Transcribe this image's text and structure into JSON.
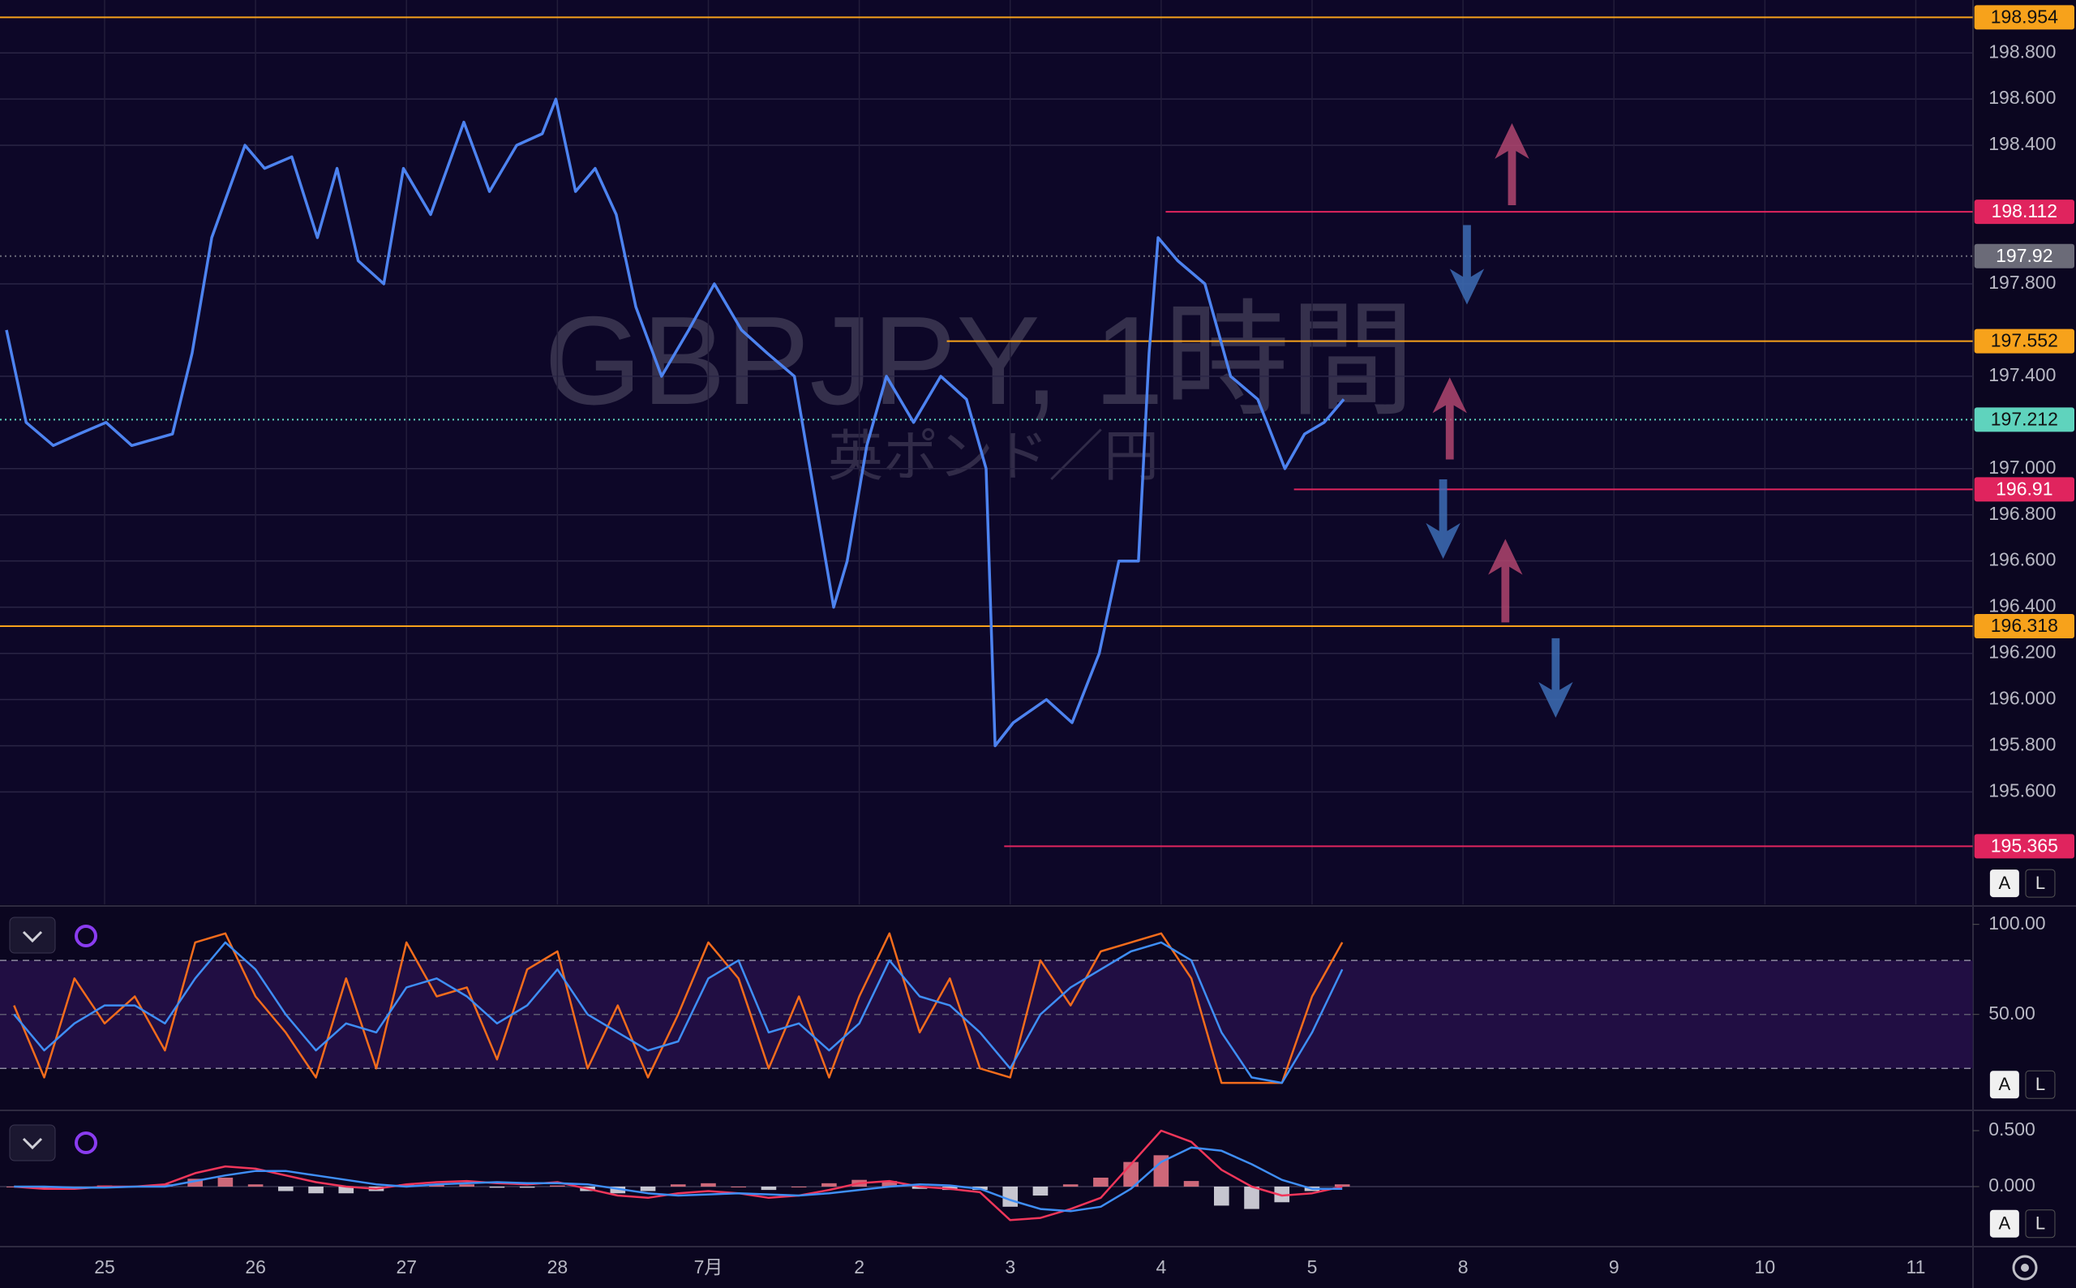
{
  "ui": {
    "auto": "A",
    "log": "L"
  },
  "chart_data": [
    {
      "type": "line",
      "title": "GBPJPY, 1時間",
      "subtitle": "英ポンド／円",
      "x": [
        -0.65,
        -0.52,
        -0.34,
        -0.17,
        0.01,
        0.18,
        0.45,
        0.58,
        0.71,
        0.93,
        1.06,
        1.24,
        1.41,
        1.54,
        1.68,
        1.85,
        1.98,
        2.16,
        2.38,
        2.55,
        2.73,
        2.9,
        2.99,
        3.12,
        3.25,
        3.39,
        3.52,
        3.69,
        3.87,
        4.04,
        4.22,
        4.39,
        4.57,
        4.7,
        4.83,
        4.92,
        5.05,
        5.18,
        5.36,
        5.54,
        5.71,
        5.84,
        5.9,
        6.02,
        6.24,
        6.41,
        6.59,
        6.72,
        6.85,
        6.92,
        6.98,
        7.11,
        7.29,
        7.46,
        7.64,
        7.82,
        7.95,
        8.08,
        8.21
      ],
      "series": [
        {
          "color": "#4d83f0",
          "values": [
            197.6,
            197.2,
            197.1,
            197.15,
            197.2,
            197.1,
            197.15,
            197.5,
            198.0,
            198.4,
            198.3,
            198.35,
            198.0,
            198.3,
            197.9,
            197.8,
            198.3,
            198.1,
            198.5,
            198.2,
            198.4,
            198.45,
            198.6,
            198.2,
            198.3,
            198.1,
            197.7,
            197.4,
            197.6,
            197.8,
            197.6,
            197.5,
            197.4,
            196.9,
            196.4,
            196.6,
            197.1,
            197.4,
            197.2,
            197.4,
            197.3,
            197.0,
            195.8,
            195.9,
            196.0,
            195.9,
            196.2,
            196.6,
            196.6,
            197.5,
            198.0,
            197.9,
            197.8,
            197.4,
            197.3,
            197.0,
            197.15,
            197.2,
            197.3
          ]
        }
      ],
      "xlim": [
        -0.693,
        12.377
      ],
      "xticks": [
        {
          "value": 0,
          "label": "25"
        },
        {
          "value": 1,
          "label": "26"
        },
        {
          "value": 2,
          "label": "27"
        },
        {
          "value": 3,
          "label": "28"
        },
        {
          "value": 4,
          "label": "7月"
        },
        {
          "value": 5,
          "label": "2"
        },
        {
          "value": 6,
          "label": "3"
        },
        {
          "value": 7,
          "label": "4"
        },
        {
          "value": 8,
          "label": "5"
        },
        {
          "value": 9,
          "label": "8"
        },
        {
          "value": 10,
          "label": "9"
        },
        {
          "value": 11,
          "label": "10"
        },
        {
          "value": 12,
          "label": "11"
        }
      ],
      "ylim": [
        195.113,
        199.029
      ],
      "yticks": [
        {
          "value": 195.6,
          "label": "195.600"
        },
        {
          "value": 195.8,
          "label": "195.800"
        },
        {
          "value": 196.0,
          "label": "196.000"
        },
        {
          "value": 196.2,
          "label": "196.200"
        },
        {
          "value": 196.4,
          "label": "196.400"
        },
        {
          "value": 196.6,
          "label": "196.600"
        },
        {
          "value": 196.8,
          "label": "196.800"
        },
        {
          "value": 197.0,
          "label": "197.000"
        },
        {
          "value": 197.4,
          "label": "197.400"
        },
        {
          "value": 197.8,
          "label": "197.800"
        },
        {
          "value": 198.4,
          "label": "198.400"
        },
        {
          "value": 198.6,
          "label": "198.600"
        },
        {
          "value": 198.8,
          "label": "198.800"
        }
      ],
      "grid": true,
      "levels": [
        {
          "value": 198.954,
          "color": "#f7a21b",
          "style": "solid"
        },
        {
          "value": 198.112,
          "color": "#e0245e",
          "style": "solid",
          "x_start": 7.03
        },
        {
          "value": 197.92,
          "color": "#6b6b78",
          "style": "dotted"
        },
        {
          "value": 197.552,
          "color": "#f7a21b",
          "style": "solid",
          "x_start": 5.58
        },
        {
          "value": 197.212,
          "color": "#5fd3bd",
          "style": "dotted"
        },
        {
          "value": 196.91,
          "color": "#e0245e",
          "style": "solid",
          "x_start": 7.88
        },
        {
          "value": 196.318,
          "color": "#f7a21b",
          "style": "solid"
        },
        {
          "value": 195.365,
          "color": "#e0245e",
          "style": "solid",
          "x_start": 5.96
        }
      ]
    },
    {
      "type": "line",
      "x": [
        -0.6,
        -0.4,
        -0.2,
        0,
        0.2,
        0.4,
        0.6,
        0.8,
        1.0,
        1.2,
        1.4,
        1.6,
        1.8,
        2.0,
        2.2,
        2.4,
        2.6,
        2.8,
        3.0,
        3.2,
        3.4,
        3.6,
        3.8,
        4.0,
        4.2,
        4.4,
        4.6,
        4.8,
        5.0,
        5.2,
        5.4,
        5.6,
        5.8,
        6.0,
        6.2,
        6.4,
        6.6,
        6.8,
        7.0,
        7.2,
        7.4,
        7.6,
        7.8,
        8.0,
        8.2
      ],
      "series": [
        {
          "color": "#f36c1c",
          "values": [
            55,
            15,
            70,
            45,
            60,
            30,
            90,
            95,
            60,
            40,
            15,
            70,
            20,
            90,
            60,
            65,
            25,
            75,
            85,
            20,
            55,
            15,
            50,
            90,
            70,
            20,
            60,
            15,
            60,
            95,
            40,
            70,
            20,
            15,
            80,
            55,
            85,
            90,
            95,
            70,
            12,
            12,
            12,
            60,
            90
          ]
        },
        {
          "color": "#3f8ef5",
          "values": [
            50,
            30,
            45,
            55,
            55,
            45,
            70,
            90,
            75,
            50,
            30,
            45,
            40,
            65,
            70,
            60,
            45,
            55,
            75,
            50,
            40,
            30,
            35,
            70,
            80,
            40,
            45,
            30,
            45,
            80,
            60,
            55,
            40,
            20,
            50,
            65,
            75,
            85,
            90,
            80,
            40,
            15,
            12,
            40,
            75
          ]
        }
      ],
      "xlim": [
        -0.693,
        12.377
      ],
      "ylim": [
        -0.7,
        109.6
      ],
      "yticks": [
        {
          "value": 50,
          "label": "50.00"
        },
        {
          "value": 100,
          "label": "100.00"
        }
      ],
      "band": [
        20,
        80
      ],
      "midline": 50
    },
    {
      "type": "line",
      "x": [
        -0.6,
        -0.4,
        -0.2,
        0,
        0.2,
        0.4,
        0.6,
        0.8,
        1.0,
        1.2,
        1.4,
        1.6,
        1.8,
        2.0,
        2.2,
        2.4,
        2.6,
        2.8,
        3.0,
        3.2,
        3.4,
        3.6,
        3.8,
        4.0,
        4.2,
        4.4,
        4.6,
        4.8,
        5.0,
        5.2,
        5.4,
        5.6,
        5.8,
        6.0,
        6.2,
        6.4,
        6.6,
        6.8,
        7.0,
        7.2,
        7.4,
        7.6,
        7.8,
        8.0,
        8.2
      ],
      "series": [
        {
          "color": "#e8e8ee",
          "style": "bar",
          "values": [
            0.0,
            -0.02,
            -0.01,
            0.01,
            0.0,
            0.02,
            0.07,
            0.08,
            0.02,
            -0.04,
            -0.06,
            -0.06,
            -0.04,
            0.02,
            0.02,
            0.02,
            -0.01,
            -0.01,
            0.01,
            -0.04,
            -0.06,
            -0.04,
            0.02,
            0.03,
            0.0,
            -0.03,
            0.0,
            0.03,
            0.06,
            0.05,
            -0.02,
            -0.03,
            -0.03,
            -0.18,
            -0.08,
            0.02,
            0.08,
            0.22,
            0.28,
            0.05,
            -0.17,
            -0.2,
            -0.14,
            -0.04,
            0.02
          ]
        },
        {
          "color": "#f0365a",
          "values": [
            0.0,
            -0.02,
            -0.02,
            0.0,
            0.0,
            0.02,
            0.12,
            0.18,
            0.16,
            0.1,
            0.04,
            0.0,
            -0.02,
            0.02,
            0.04,
            0.05,
            0.03,
            0.02,
            0.04,
            -0.02,
            -0.08,
            -0.1,
            -0.06,
            -0.04,
            -0.06,
            -0.1,
            -0.08,
            -0.03,
            0.03,
            0.05,
            0.0,
            -0.02,
            -0.05,
            -0.3,
            -0.28,
            -0.2,
            -0.1,
            0.2,
            0.5,
            0.4,
            0.15,
            0.0,
            -0.08,
            -0.06,
            0.0
          ]
        },
        {
          "color": "#3f8ef5",
          "values": [
            0.0,
            0.0,
            -0.01,
            -0.01,
            0.0,
            0.0,
            0.05,
            0.1,
            0.14,
            0.14,
            0.1,
            0.06,
            0.02,
            0.0,
            0.02,
            0.03,
            0.04,
            0.03,
            0.03,
            0.02,
            -0.02,
            -0.06,
            -0.08,
            -0.07,
            -0.06,
            -0.07,
            -0.08,
            -0.06,
            -0.03,
            0.0,
            0.02,
            0.01,
            -0.02,
            -0.12,
            -0.2,
            -0.22,
            -0.18,
            -0.02,
            0.22,
            0.35,
            0.32,
            0.2,
            0.06,
            -0.02,
            -0.02
          ]
        }
      ],
      "xlim": [
        -0.693,
        12.377
      ],
      "ylim": [
        -0.52,
        0.64
      ],
      "yticks": [
        {
          "value": 0,
          "label": "0.000"
        },
        {
          "value": 0.5,
          "label": "0.500"
        }
      ],
      "zeroline": true
    }
  ]
}
